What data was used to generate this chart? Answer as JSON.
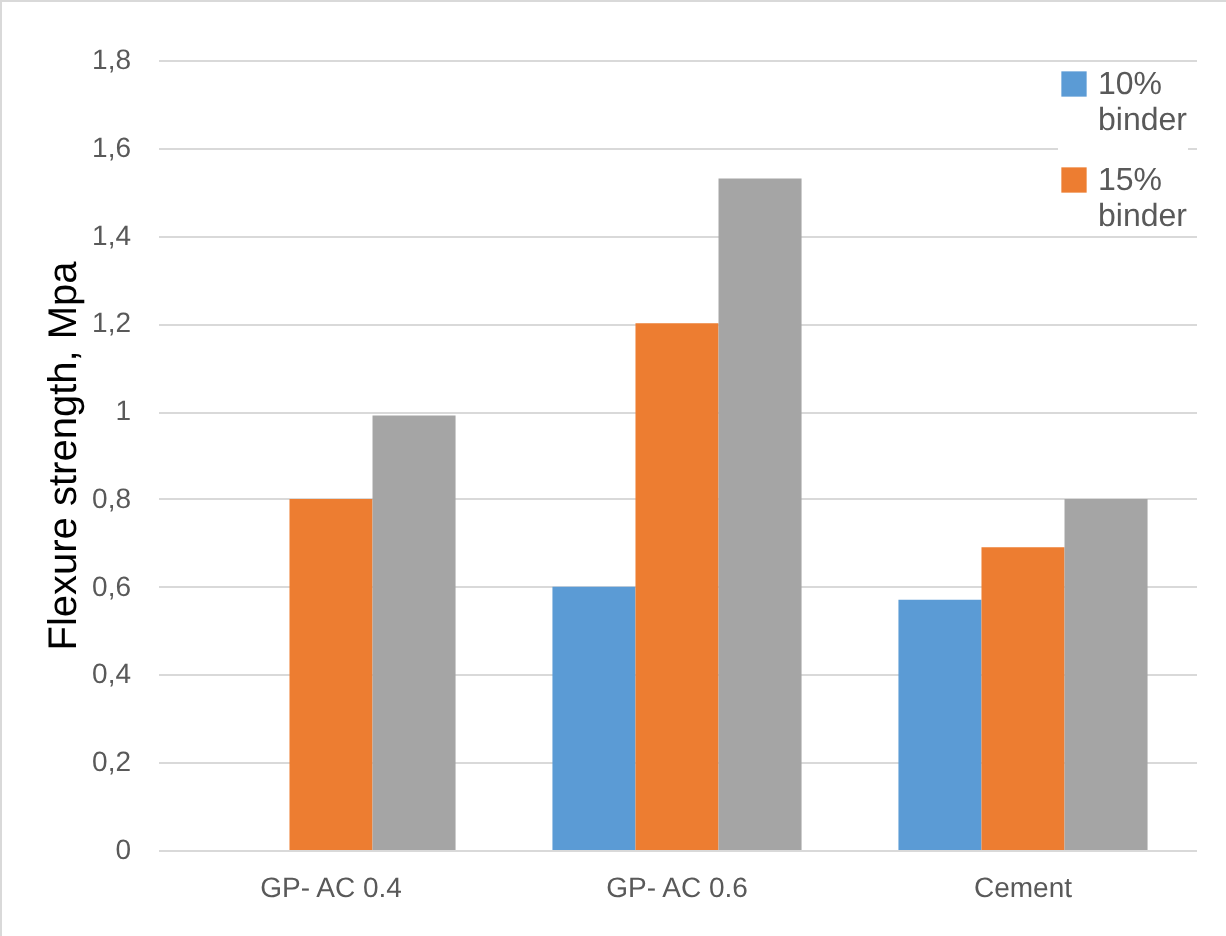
{
  "chart_data": {
    "type": "bar",
    "ylabel": "Flexure strength, Mpa",
    "categories": [
      "GP- AC 0.4",
      "GP- AC 0.6",
      "Cement"
    ],
    "series": [
      {
        "name": "10% binder",
        "color": "#5b9bd5",
        "values": [
          null,
          0.6,
          0.57
        ]
      },
      {
        "name": "15% binder",
        "color": "#ed7d31",
        "values": [
          0.8,
          1.2,
          0.69
        ]
      },
      {
        "color": "#a5a5a5",
        "values": [
          0.99,
          1.53,
          0.8
        ]
      }
    ],
    "ylim": [
      0,
      1.8
    ],
    "yticks": [
      0,
      {
        "value": 0.2,
        "label": "0,2"
      },
      {
        "value": 0.4,
        "label": "0,4"
      },
      {
        "value": 0.6,
        "label": "0,6"
      },
      {
        "value": 0.8,
        "label": "0,8"
      },
      1,
      {
        "value": 1.2,
        "label": "1,2"
      },
      {
        "value": 1.4,
        "label": "1,4"
      },
      {
        "value": 1.6,
        "label": "1,6"
      },
      {
        "value": 1.8,
        "label": "1,8"
      }
    ],
    "grid": "y",
    "legend": "top right"
  }
}
